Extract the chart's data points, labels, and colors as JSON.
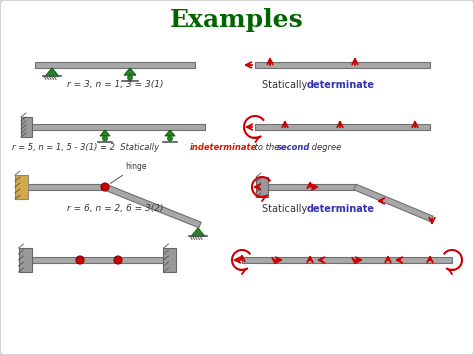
{
  "title": "Examples",
  "title_color": "#006400",
  "title_fontsize": 18,
  "bg_color": "#f0f0f0",
  "beam_color": "#a8a8a8",
  "beam_edge_color": "#707070",
  "support_color": "#2e7d32",
  "arrow_color": "#cc0000",
  "text_color": "#333333",
  "blue_text": "#3333aa",
  "red_text": "#cc2200",
  "row1_label": "r = 3, n = 1, 3 = 3(1)",
  "row2_label_pre": "r = 5, n = 1, 5 - 3(1) = 2  Statically ",
  "row2_indeterminate": "indeterminate",
  "row2_rest": " to the ",
  "row2_second": "second",
  "row2_degree": " degree",
  "row3_label": "r = 6, n = 2, 6 = 3(2)",
  "stat_det": "determinate"
}
